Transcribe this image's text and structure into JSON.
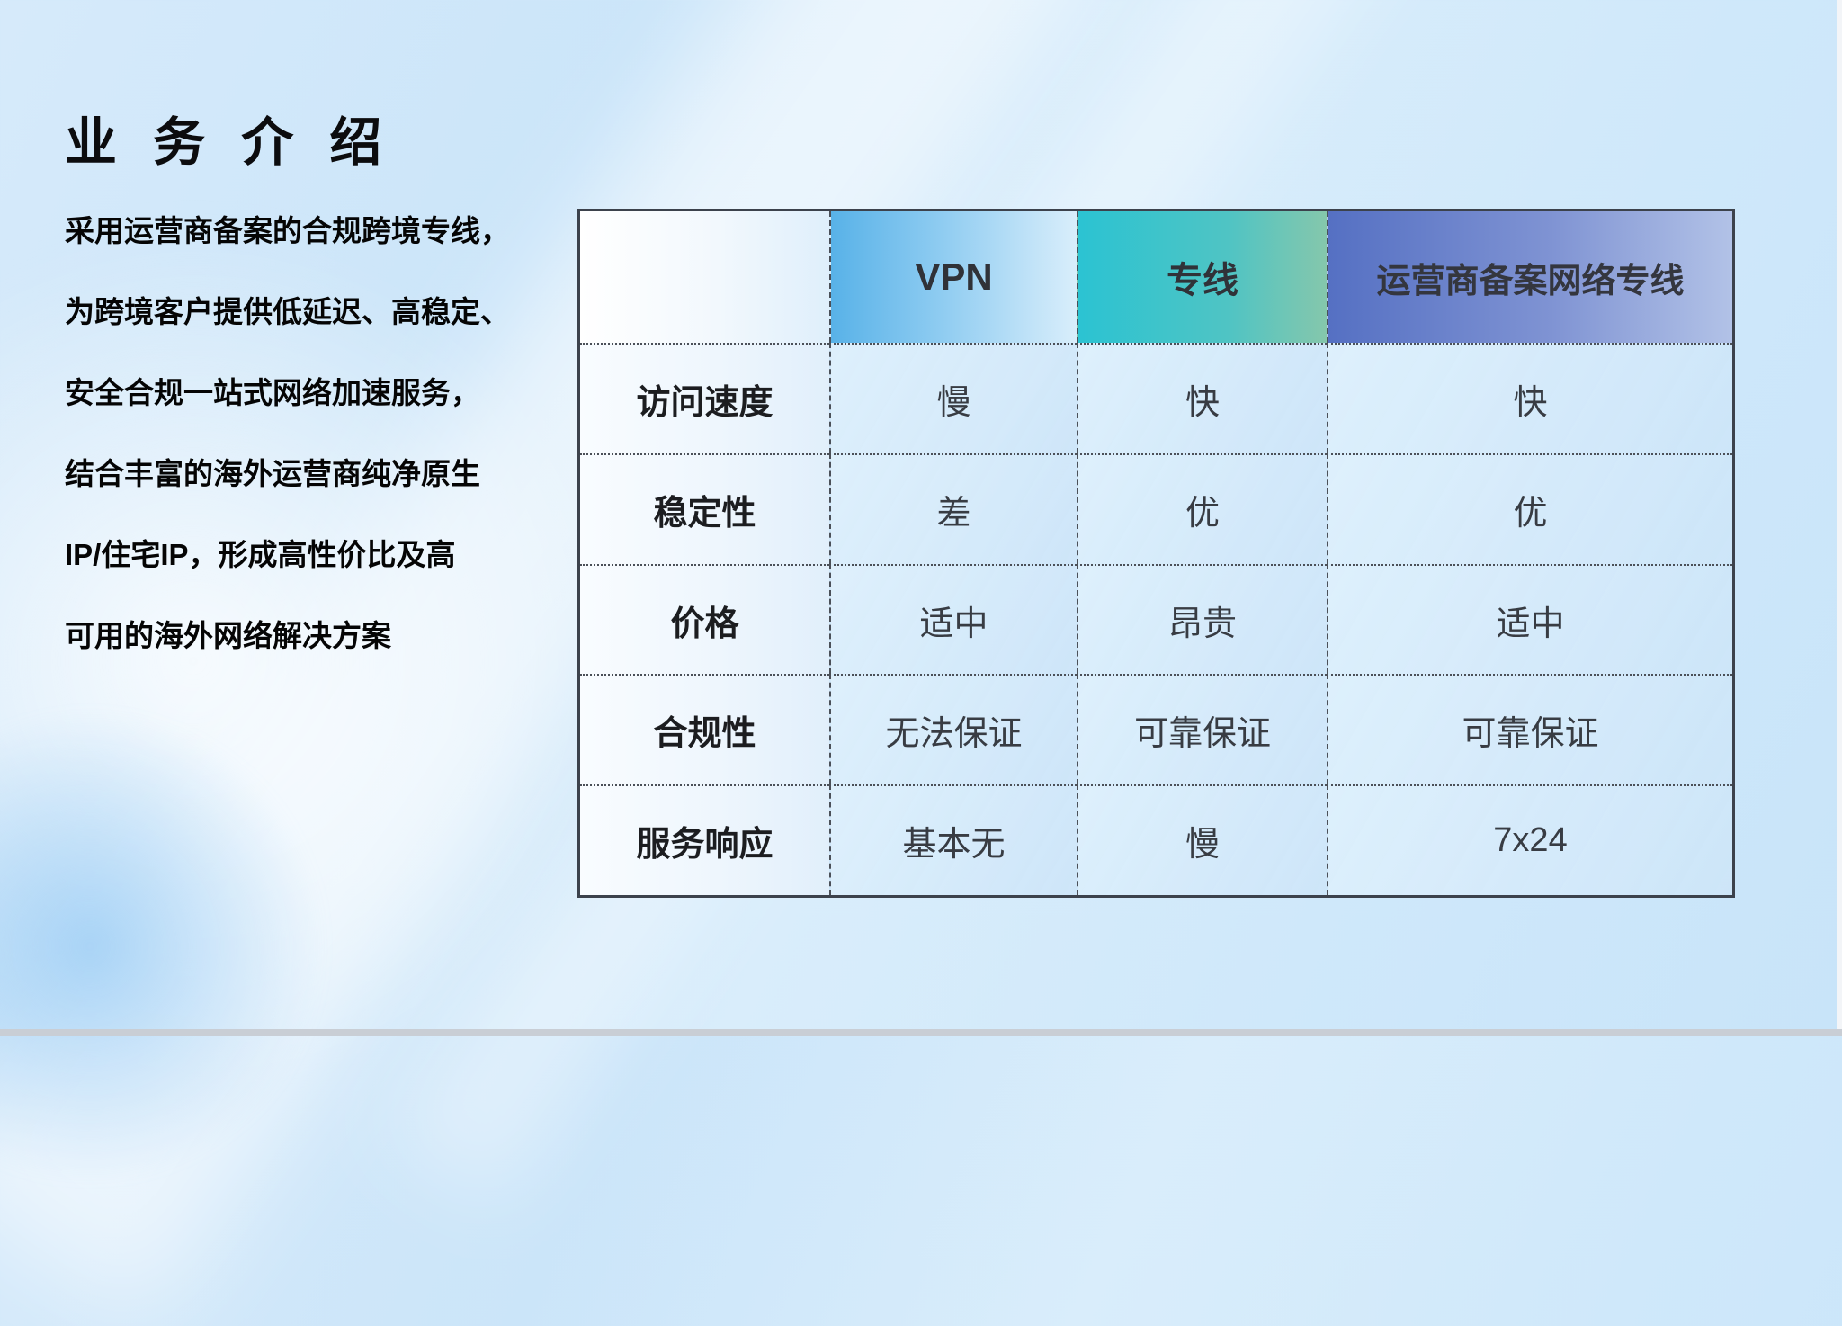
{
  "slide": {
    "title": "业 务 介 绍",
    "intro_lines": [
      "采用运营商备案的合规跨境专线，",
      "为跨境客户提供低延迟、高稳定、",
      "安全合规一站式网络加速服务，",
      "结合丰富的海外运营商纯净原生",
      "IP/住宅IP，形成高性价比及高",
      "可用的海外网络解决方案"
    ]
  },
  "comparison_table": {
    "columns": [
      "",
      "VPN",
      "专线",
      "运营商备案网络专线"
    ],
    "rows": [
      {
        "label": "访问速度",
        "values": [
          "慢",
          "快",
          "快"
        ]
      },
      {
        "label": "稳定性",
        "values": [
          "差",
          "优",
          "优"
        ]
      },
      {
        "label": "价格",
        "values": [
          "适中",
          "昂贵",
          "适中"
        ]
      },
      {
        "label": "合规性",
        "values": [
          "无法保证",
          "可靠保证",
          "可靠保证"
        ]
      },
      {
        "label": "服务响应",
        "values": [
          "基本无",
          "慢",
          "7x24"
        ]
      }
    ],
    "accent_colors": {
      "vpn_gradient": [
        "#58b2e8",
        "#d9eefb"
      ],
      "dedicated_line_gradient": [
        "#2bc3d2",
        "#85c7ac"
      ],
      "carrier_gradient": [
        "#5570c3",
        "#b2c2e7"
      ],
      "slide_background": "#cde6fa",
      "table_border": "#3c424c"
    }
  }
}
